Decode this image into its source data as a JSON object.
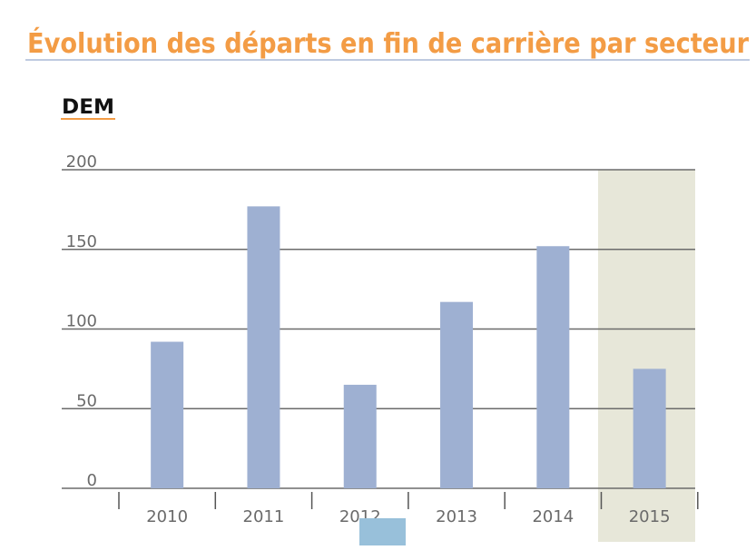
{
  "chart_data": {
    "type": "bar",
    "title": "Évolution des départs en fin de carrière par secteur",
    "subtitle": "DEM",
    "xlabel": "",
    "ylabel": "",
    "categories": [
      "2010",
      "2011",
      "2012",
      "2013",
      "2014",
      "2015"
    ],
    "values": [
      92,
      177,
      65,
      117,
      152,
      75
    ],
    "ylim": [
      0,
      200
    ],
    "yticks": [
      "0",
      "50",
      "100",
      "150",
      "200"
    ],
    "grid": true,
    "highlighted_category": "2015",
    "colors": {
      "title": "#f39c45",
      "title_rule": "#a9b8d6",
      "subtitle_rule": "#f39c45",
      "bar": "#9eb0d2",
      "highlight": "#e7e7d9",
      "grid": "#6b6b6b",
      "legend_swatch": "#98c0da"
    }
  }
}
